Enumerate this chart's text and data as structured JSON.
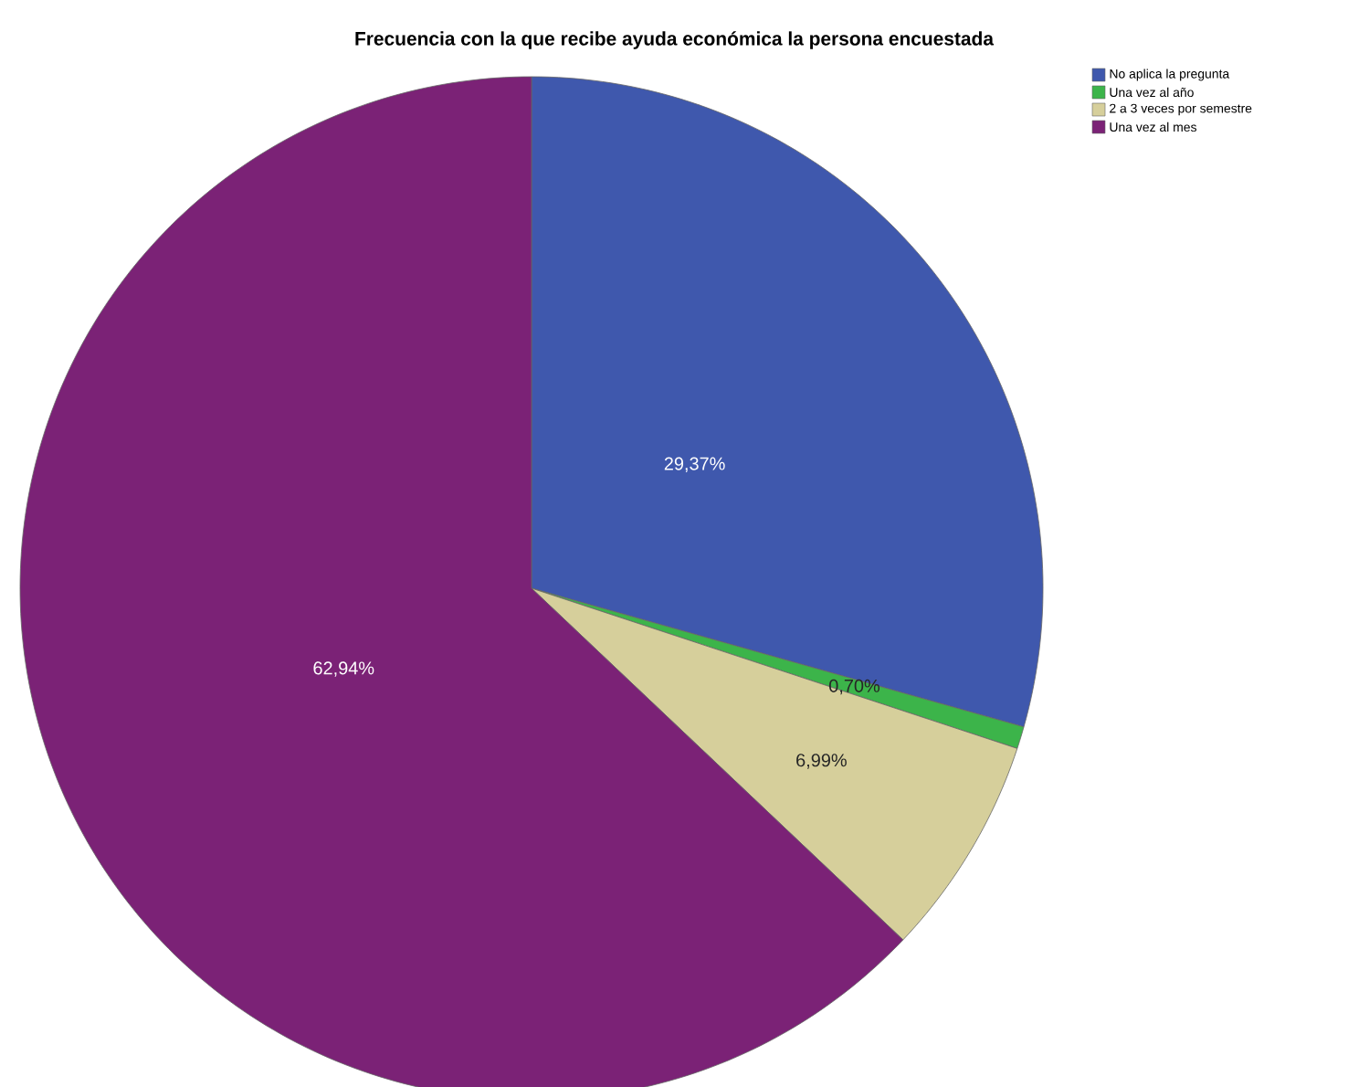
{
  "chart_data": {
    "type": "pie",
    "title": "Frecuencia con la que recibe ayuda económica la persona encuestada",
    "categories": [
      "No aplica la pregunta",
      "Una vez al año",
      "2 a 3 veces por semestre",
      "Una vez al mes"
    ],
    "values": [
      29.37,
      0.7,
      6.99,
      62.94
    ],
    "colors": [
      "#3f58ad",
      "#3cb44a",
      "#d6cf9b",
      "#7b2276"
    ],
    "value_labels": [
      "29,37%",
      "0,70%",
      "6,99%",
      "62,94%"
    ],
    "legend": "top right"
  }
}
